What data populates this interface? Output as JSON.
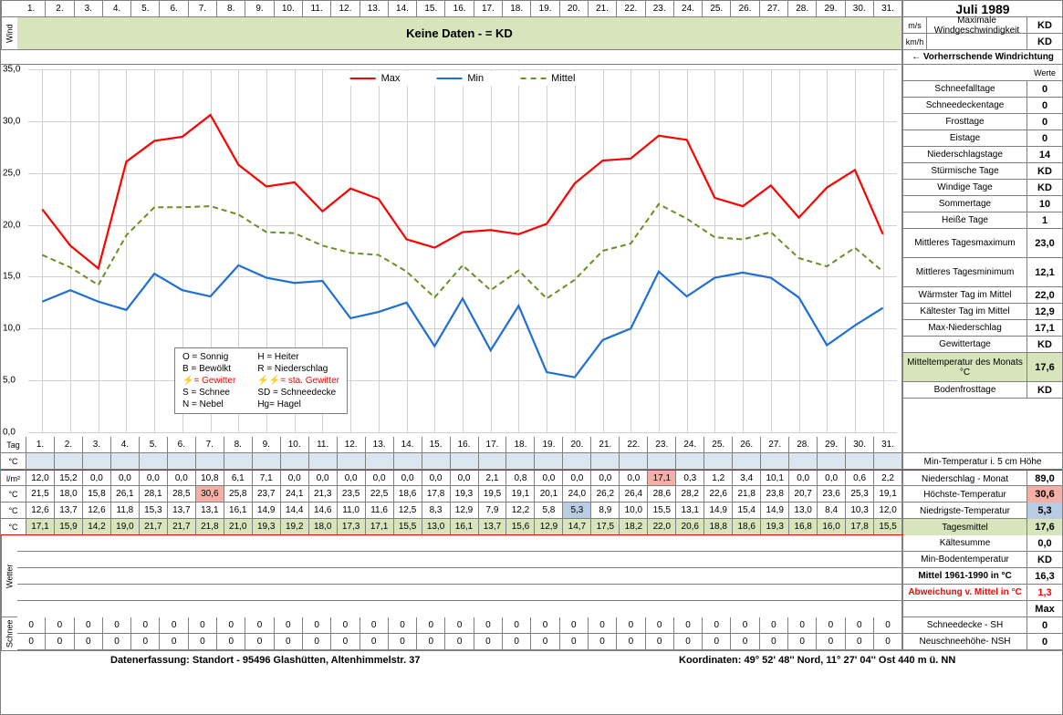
{
  "title": "Juli 1989",
  "days": [
    "1.",
    "2.",
    "3.",
    "4.",
    "5.",
    "6.",
    "7.",
    "8.",
    "9.",
    "10.",
    "11.",
    "12.",
    "13.",
    "14.",
    "15.",
    "16.",
    "17.",
    "18.",
    "19.",
    "20.",
    "21.",
    "22.",
    "23.",
    "24.",
    "25.",
    "26.",
    "27.",
    "28.",
    "29.",
    "30.",
    "31."
  ],
  "wind_banner": "Keine Daten -  = KD",
  "wind_units": [
    "m/s",
    "km/h"
  ],
  "wind_label": "Maximale Windgeschwindigkeit",
  "wind_values": [
    "KD",
    "KD"
  ],
  "wind_dir_label": "← Vorherrschende Windrichtung",
  "werte_label": "Werte",
  "chart": {
    "type": "line",
    "ylim": [
      0,
      35
    ],
    "ytick_step": 5,
    "yticks": [
      "0,0",
      "5,0",
      "10,0",
      "15,0",
      "20,0",
      "25,0",
      "30,0",
      "35,0"
    ],
    "grid_color": "#d0d0d0",
    "background_color": "#ffffff",
    "series": [
      {
        "name": "Max",
        "color": "#ff0000",
        "dash": "none",
        "width": 2.2,
        "values": [
          21.5,
          18.0,
          15.8,
          26.1,
          28.1,
          28.5,
          30.6,
          25.8,
          23.7,
          24.1,
          21.3,
          23.5,
          22.5,
          18.6,
          17.8,
          19.3,
          19.5,
          19.1,
          20.1,
          24.0,
          26.2,
          26.4,
          28.6,
          28.2,
          22.6,
          21.8,
          23.8,
          20.7,
          23.6,
          25.3,
          19.1
        ]
      },
      {
        "name": "Min",
        "color": "#1f6fd4",
        "dash": "none",
        "width": 2.2,
        "values": [
          12.6,
          13.7,
          12.6,
          11.8,
          15.3,
          13.7,
          13.1,
          16.1,
          14.9,
          14.4,
          14.6,
          11.0,
          11.6,
          12.5,
          8.3,
          12.9,
          7.9,
          12.2,
          5.8,
          5.3,
          8.9,
          10.0,
          15.5,
          13.1,
          14.9,
          15.4,
          14.9,
          13.0,
          8.4,
          10.3,
          12.0
        ]
      },
      {
        "name": "Mittel",
        "color": "#6b8e23",
        "dash": "6,4",
        "width": 2.0,
        "values": [
          17.1,
          15.9,
          14.2,
          19.0,
          21.7,
          21.7,
          21.8,
          21.0,
          19.3,
          19.2,
          18.0,
          17.3,
          17.1,
          15.5,
          13.0,
          16.1,
          13.7,
          15.6,
          12.9,
          14.7,
          17.5,
          18.2,
          22.0,
          20.6,
          18.8,
          18.6,
          19.3,
          16.8,
          16.0,
          17.8,
          15.5
        ]
      }
    ]
  },
  "weather_key": [
    [
      "O = Sonnig",
      "H = Heiter"
    ],
    [
      "B = Bewölkt",
      "R = Niederschlag"
    ],
    [
      "⚡= Gewitter",
      "⚡⚡= sta. Gewitter"
    ],
    [
      "S = Schnee",
      "SD = Schneedecke"
    ],
    [
      "N = Nebel",
      "Hg= Hagel"
    ]
  ],
  "side_stats": [
    {
      "label": "Schneefalltage",
      "value": "0"
    },
    {
      "label": "Schneedeckentage",
      "value": "0"
    },
    {
      "label": "Frosttage",
      "value": "0"
    },
    {
      "label": "Eistage",
      "value": "0"
    },
    {
      "label": "Niederschlagstage",
      "value": "14"
    },
    {
      "label": "Stürmische Tage",
      "value": "KD"
    },
    {
      "label": "Windige Tage",
      "value": "KD"
    },
    {
      "label": "Sommertage",
      "value": "10"
    },
    {
      "label": "Heiße Tage",
      "value": "1"
    },
    {
      "label": "Mittleres Tagesmaximum",
      "value": "23,0",
      "tall": true
    },
    {
      "label": "Mittleres Tagesminimum",
      "value": "12,1",
      "tall": true
    },
    {
      "label": "Wärmster Tag im Mittel",
      "value": "22,0"
    },
    {
      "label": "Kältester Tag im Mittel",
      "value": "12,9"
    },
    {
      "label": "Max-Niederschlag",
      "value": "17,1"
    },
    {
      "label": "Gewittertage",
      "value": "KD"
    },
    {
      "label": "Mitteltemperatur des Monats °C",
      "value": "17,6",
      "hl": "green",
      "tall": true
    },
    {
      "label": "Bodenfrosttage",
      "value": "KD"
    }
  ],
  "tag_label": "Tag",
  "temp_c_label": "°C",
  "min_temp_5cm_label": "Min-Temperatur i. 5 cm Höhe",
  "data_rows": [
    {
      "unit": "l/m²",
      "label": "Niederschlag - Monat",
      "value": "89,0",
      "hl_idx": 23,
      "hl_color": "#f4b0a6",
      "cells": [
        "12,0",
        "15,2",
        "0,0",
        "0,0",
        "0,0",
        "0,0",
        "10,8",
        "6,1",
        "7,1",
        "0,0",
        "0,0",
        "0,0",
        "0,0",
        "0,0",
        "0,0",
        "0,0",
        "2,1",
        "0,8",
        "0,0",
        "0,0",
        "0,0",
        "0,0",
        "17,1",
        "0,3",
        "1,2",
        "3,4",
        "10,1",
        "0,0",
        "0,0",
        "0,6",
        "2,2"
      ]
    },
    {
      "unit": "°C",
      "label": "Höchste-Temperatur",
      "value": "30,6",
      "value_hl": "#f4b0a6",
      "hl_idx": 7,
      "hl_color": "#f4b0a6",
      "cells": [
        "21,5",
        "18,0",
        "15,8",
        "26,1",
        "28,1",
        "28,5",
        "30,6",
        "25,8",
        "23,7",
        "24,1",
        "21,3",
        "23,5",
        "22,5",
        "18,6",
        "17,8",
        "19,3",
        "19,5",
        "19,1",
        "20,1",
        "24,0",
        "26,2",
        "26,4",
        "28,6",
        "28,2",
        "22,6",
        "21,8",
        "23,8",
        "20,7",
        "23,6",
        "25,3",
        "19,1"
      ]
    },
    {
      "unit": "°C",
      "label": "Niedrigste-Temperatur",
      "value": "5,3",
      "value_hl": "#b8cce4",
      "hl_idx": 20,
      "hl_color": "#b8cce4",
      "cells": [
        "12,6",
        "13,7",
        "12,6",
        "11,8",
        "15,3",
        "13,7",
        "13,1",
        "16,1",
        "14,9",
        "14,4",
        "14,6",
        "11,0",
        "11,6",
        "12,5",
        "8,3",
        "12,9",
        "7,9",
        "12,2",
        "5,8",
        "5,3",
        "8,9",
        "10,0",
        "15,5",
        "13,1",
        "14,9",
        "15,4",
        "14,9",
        "13,0",
        "8,4",
        "10,3",
        "12,0"
      ]
    },
    {
      "unit": "°C",
      "label": "Tagesmittel",
      "value": "17,6",
      "row_hl": "#d7e4bc",
      "red_border": true,
      "cells": [
        "17,1",
        "15,9",
        "14,2",
        "19,0",
        "21,7",
        "21,7",
        "21,8",
        "21,0",
        "19,3",
        "19,2",
        "18,0",
        "17,3",
        "17,1",
        "15,5",
        "13,0",
        "16,1",
        "13,7",
        "15,6",
        "12,9",
        "14,7",
        "17,5",
        "18,2",
        "22,0",
        "20,6",
        "18,8",
        "18,6",
        "19,3",
        "16,8",
        "16,0",
        "17,8",
        "15,5"
      ]
    }
  ],
  "extra_side": [
    {
      "label": "Kältesumme",
      "value": "0,0"
    },
    {
      "label": "Min-Bodentemperatur",
      "value": "KD"
    },
    {
      "label": "Mittel 1961-1990 in °C",
      "value": "16,3",
      "bold": true
    },
    {
      "label": "Abweichung v. Mittel in °C",
      "value": "1,3",
      "red": true
    },
    {
      "label": "",
      "value": "Max"
    }
  ],
  "wetter_label": "Wetter",
  "schnee_label": "Schnee",
  "snow_rows": [
    {
      "label": "Schneedecke -   SH",
      "value": "0",
      "cells": [
        "0",
        "0",
        "0",
        "0",
        "0",
        "0",
        "0",
        "0",
        "0",
        "0",
        "0",
        "0",
        "0",
        "0",
        "0",
        "0",
        "0",
        "0",
        "0",
        "0",
        "0",
        "0",
        "0",
        "0",
        "0",
        "0",
        "0",
        "0",
        "0",
        "0",
        "0"
      ]
    },
    {
      "label": "Neuschneehöhe- NSH",
      "value": "0",
      "cells": [
        "0",
        "0",
        "0",
        "0",
        "0",
        "0",
        "0",
        "0",
        "0",
        "0",
        "0",
        "0",
        "0",
        "0",
        "0",
        "0",
        "0",
        "0",
        "0",
        "0",
        "0",
        "0",
        "0",
        "0",
        "0",
        "0",
        "0",
        "0",
        "0",
        "0",
        "0"
      ]
    }
  ],
  "footer_left": "Datenerfassung:  Standort -   95496  Glashütten, Altenhimmelstr. 37",
  "footer_right": "Koordinaten:  49° 52' 48'' Nord,   11° 27' 04'' Ost   440 m ü. NN"
}
